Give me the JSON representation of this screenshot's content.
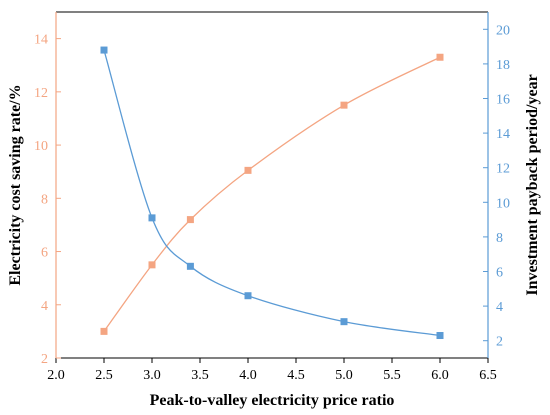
{
  "chart_data": {
    "type": "line",
    "xlabel": "Peak-to-valley electricity price ratio",
    "xlim": [
      2.0,
      6.5
    ],
    "xticks": [
      "2.0",
      "2.5",
      "3.0",
      "3.5",
      "4.0",
      "4.5",
      "5.0",
      "5.5",
      "6.0",
      "6.5"
    ],
    "grid": false,
    "series": [
      {
        "axis": "left",
        "ylabel": "Electricity cost saving rate/%",
        "ylim": [
          2,
          15
        ],
        "yticks": [
          "2",
          "4",
          "6",
          "8",
          "10",
          "12",
          "14"
        ],
        "color": "#F4A582",
        "marker": "square",
        "x": [
          2.5,
          3.0,
          3.4,
          4.0,
          5.0,
          6.0
        ],
        "y": [
          3.0,
          5.5,
          7.2,
          9.05,
          11.5,
          13.3
        ]
      },
      {
        "axis": "right",
        "ylabel": "Investment payback period/year",
        "ylim": [
          1,
          21
        ],
        "yticks": [
          "2",
          "4",
          "6",
          "8",
          "10",
          "12",
          "14",
          "16",
          "18",
          "20"
        ],
        "color": "#5B9BD5",
        "marker": "square",
        "x": [
          2.5,
          3.0,
          3.4,
          4.0,
          5.0,
          6.0
        ],
        "y": [
          18.8,
          9.1,
          6.3,
          4.6,
          3.1,
          2.3
        ]
      }
    ],
    "axis_colors": {
      "left": "#F4A582",
      "right": "#5B9BD5",
      "bottom": "#000000"
    }
  }
}
